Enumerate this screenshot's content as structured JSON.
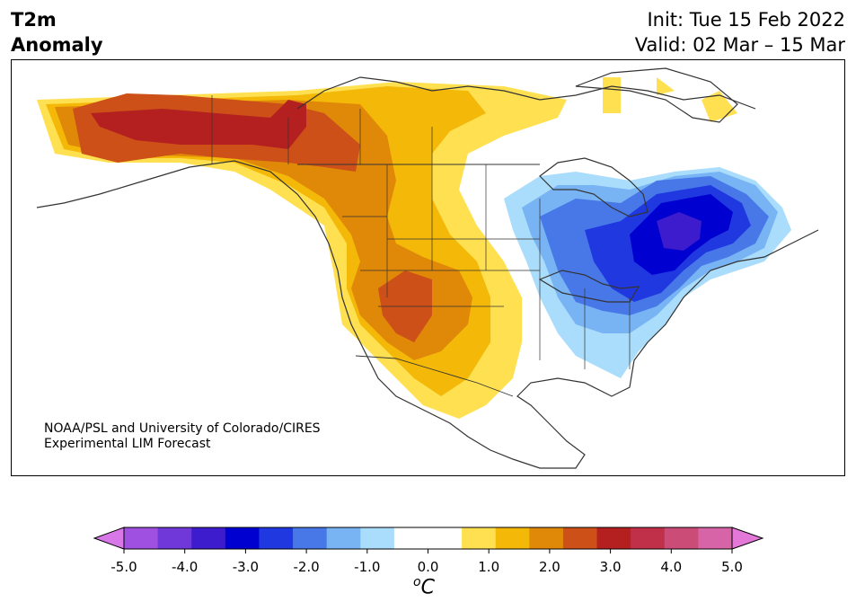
{
  "header": {
    "title_line1": "T2m",
    "title_line2": "Anomaly",
    "init": "Init: Tue 15 Feb 2022",
    "valid": "Valid: 02 Mar – 15 Mar"
  },
  "credit": {
    "line1": "NOAA/PSL and University of Colorado/CIRES",
    "line2": "Experimental LIM Forecast"
  },
  "colorbar": {
    "unit_base": "C",
    "unit_sup": "o",
    "colors": [
      "#d878e8",
      "#a050e0",
      "#7038d8",
      "#3c1ccc",
      "#0000d0",
      "#2038e0",
      "#4878e8",
      "#78b4f4",
      "#aadcfc",
      "#ffffff",
      "#ffffff",
      "#ffe050",
      "#f4b808",
      "#e08808",
      "#cc5018",
      "#b42020",
      "#c03048",
      "#cc4c78",
      "#d864a8",
      "#e478d8"
    ],
    "ticks": [
      "-5.0",
      "-4.0",
      "-3.0",
      "-2.0",
      "-1.0",
      "0.0",
      "1.0",
      "2.0",
      "3.0",
      "4.0",
      "5.0"
    ]
  },
  "map_layers": {
    "colors": {
      "c1": "#ffe050",
      "c2": "#f4b808",
      "c3": "#e08808",
      "c4": "#cc5018",
      "c5": "#b42020",
      "b1": "#aadcfc",
      "b2": "#78b4f4",
      "b3": "#4878e8",
      "b4": "#2038e0",
      "b5": "#0000d0",
      "b6": "#3c1ccc"
    }
  }
}
